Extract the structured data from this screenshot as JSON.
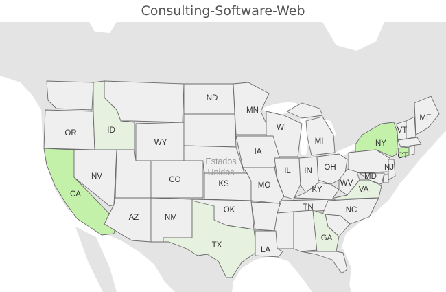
{
  "title": "Consulting-Software-Web",
  "country_label_line1": "Estados",
  "country_label_line2": "Unidos",
  "colors": {
    "neutral": "#efefef",
    "light": "#e6f2df",
    "medium": "#c3f1aa",
    "land": "#e4e4e4",
    "water": "#ffffff",
    "border": "#6b6b6b"
  },
  "states": [
    {
      "abbr": "OR",
      "level": "neutral"
    },
    {
      "abbr": "ID",
      "level": "light"
    },
    {
      "abbr": "WY",
      "level": "neutral"
    },
    {
      "abbr": "ND",
      "level": "neutral"
    },
    {
      "abbr": "MN",
      "level": "neutral"
    },
    {
      "abbr": "WI",
      "level": "neutral"
    },
    {
      "abbr": "MI",
      "level": "neutral"
    },
    {
      "abbr": "NY",
      "level": "medium"
    },
    {
      "abbr": "VT",
      "level": "neutral"
    },
    {
      "abbr": "ME",
      "level": "neutral"
    },
    {
      "abbr": "CT",
      "level": "medium"
    },
    {
      "abbr": "NJ",
      "level": "neutral"
    },
    {
      "abbr": "MD",
      "level": "neutral"
    },
    {
      "abbr": "CA",
      "level": "medium"
    },
    {
      "abbr": "NV",
      "level": "neutral"
    },
    {
      "abbr": "CO",
      "level": "neutral"
    },
    {
      "abbr": "KS",
      "level": "neutral"
    },
    {
      "abbr": "IA",
      "level": "neutral"
    },
    {
      "abbr": "IL",
      "level": "neutral"
    },
    {
      "abbr": "IN",
      "level": "neutral"
    },
    {
      "abbr": "OH",
      "level": "neutral"
    },
    {
      "abbr": "WV",
      "level": "neutral"
    },
    {
      "abbr": "VA",
      "level": "light"
    },
    {
      "abbr": "KY",
      "level": "neutral"
    },
    {
      "abbr": "MO",
      "level": "neutral"
    },
    {
      "abbr": "AZ",
      "level": "neutral"
    },
    {
      "abbr": "NM",
      "level": "neutral"
    },
    {
      "abbr": "OK",
      "level": "neutral"
    },
    {
      "abbr": "TN",
      "level": "neutral"
    },
    {
      "abbr": "NC",
      "level": "neutral"
    },
    {
      "abbr": "TX",
      "level": "light"
    },
    {
      "abbr": "LA",
      "level": "neutral"
    },
    {
      "abbr": "GA",
      "level": "light"
    }
  ]
}
